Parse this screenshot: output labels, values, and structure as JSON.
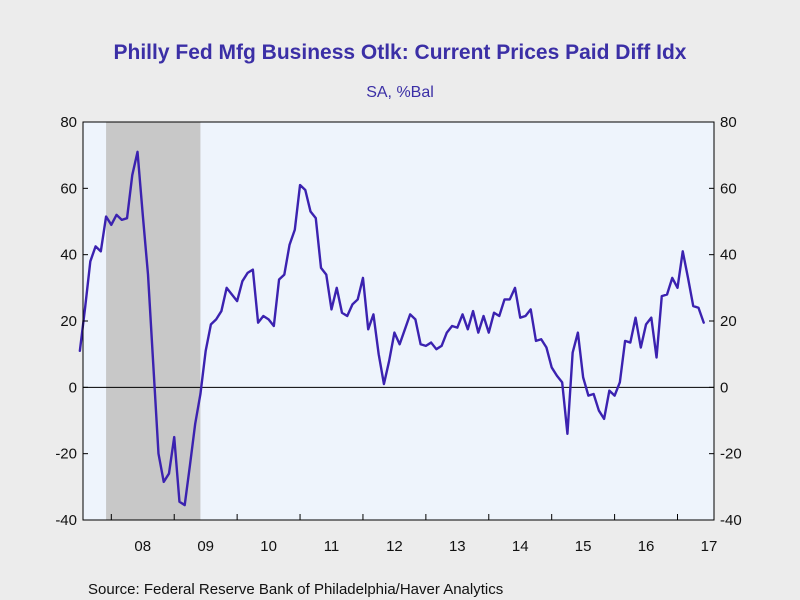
{
  "colors": {
    "background": "#ececec",
    "plot_background": "#eef4fc",
    "recession_shade": "#c8c8c8",
    "series_line": "#3b22b0",
    "title_text": "#3b2fa6",
    "axis": "#000000"
  },
  "source": "Source:  Federal Reserve Bank of Philadelphia/Haver Analytics",
  "chart_data": {
    "type": "line",
    "title": "Philly Fed Mfg Business Otlk: Current Prices Paid Diff Idx",
    "subtitle": "SA, %Bal",
    "xlabel": "",
    "ylabel": "",
    "ylim": [
      -40,
      80
    ],
    "yticks": [
      "80",
      "60",
      "40",
      "20",
      "0",
      "-20",
      "-40"
    ],
    "ytick_values": [
      80,
      60,
      40,
      20,
      0,
      -20,
      -40
    ],
    "xlim": [
      2007.55,
      2017.58
    ],
    "xticks": [
      {
        "label": "08",
        "year": 2008
      },
      {
        "label": "09",
        "year": 2009
      },
      {
        "label": "10",
        "year": 2010
      },
      {
        "label": "11",
        "year": 2011
      },
      {
        "label": "12",
        "year": 2012
      },
      {
        "label": "13",
        "year": 2013
      },
      {
        "label": "14",
        "year": 2014
      },
      {
        "label": "15",
        "year": 2015
      },
      {
        "label": "16",
        "year": 2016
      },
      {
        "label": "17",
        "year": 2017
      }
    ],
    "zero_line": true,
    "grid": false,
    "recession": {
      "start": "2007-12",
      "end": "2009-06"
    },
    "series": [
      {
        "x": [
          "2007-07",
          "2007-08",
          "2007-09",
          "2007-10",
          "2007-11",
          "2007-12",
          "2008-01",
          "2008-02",
          "2008-03",
          "2008-04",
          "2008-05",
          "2008-06",
          "2008-07",
          "2008-08",
          "2008-09",
          "2008-10",
          "2008-11",
          "2008-12",
          "2009-01",
          "2009-02",
          "2009-03",
          "2009-04",
          "2009-05",
          "2009-06",
          "2009-07",
          "2009-08",
          "2009-09",
          "2009-10",
          "2009-11",
          "2009-12",
          "2010-01",
          "2010-02",
          "2010-03",
          "2010-04",
          "2010-05",
          "2010-06",
          "2010-07",
          "2010-08",
          "2010-09",
          "2010-10",
          "2010-11",
          "2010-12",
          "2011-01",
          "2011-02",
          "2011-03",
          "2011-04",
          "2011-05",
          "2011-06",
          "2011-07",
          "2011-08",
          "2011-09",
          "2011-10",
          "2011-11",
          "2011-12",
          "2012-01",
          "2012-02",
          "2012-03",
          "2012-04",
          "2012-05",
          "2012-06",
          "2012-07",
          "2012-08",
          "2012-09",
          "2012-10",
          "2012-11",
          "2012-12",
          "2013-01",
          "2013-02",
          "2013-03",
          "2013-04",
          "2013-05",
          "2013-06",
          "2013-07",
          "2013-08",
          "2013-09",
          "2013-10",
          "2013-11",
          "2013-12",
          "2014-01",
          "2014-02",
          "2014-03",
          "2014-04",
          "2014-05",
          "2014-06",
          "2014-07",
          "2014-08",
          "2014-09",
          "2014-10",
          "2014-11",
          "2014-12",
          "2015-01",
          "2015-02",
          "2015-03",
          "2015-04",
          "2015-05",
          "2015-06",
          "2015-07",
          "2015-08",
          "2015-09",
          "2015-10",
          "2015-11",
          "2015-12",
          "2016-01",
          "2016-02",
          "2016-03",
          "2016-04",
          "2016-05",
          "2016-06",
          "2016-07",
          "2016-08",
          "2016-09",
          "2016-10",
          "2016-11",
          "2016-12",
          "2017-01",
          "2017-02",
          "2017-03",
          "2017-04",
          "2017-05",
          "2017-06"
        ],
        "values": [
          11,
          24,
          38,
          42.5,
          41,
          51.5,
          49,
          52,
          50.5,
          51,
          64,
          71,
          52,
          34,
          7,
          -20,
          -28.5,
          -26,
          -15,
          -34.5,
          -35.5,
          -23.5,
          -11,
          -2,
          11,
          19,
          20.5,
          23,
          30,
          28,
          26,
          32,
          34.5,
          35.5,
          19.5,
          21.5,
          20.5,
          18.5,
          32.5,
          34,
          43,
          47.5,
          61,
          59.5,
          53,
          51,
          36,
          34,
          23.5,
          30,
          22.5,
          21.5,
          25,
          26.5,
          33,
          17.5,
          22,
          10,
          1,
          8,
          16.5,
          13,
          17.5,
          22,
          20.5,
          13,
          12.5,
          13.5,
          11.5,
          12.5,
          16.5,
          18.5,
          18,
          22,
          17.5,
          23,
          16.5,
          21.5,
          16.5,
          22.5,
          21.5,
          26.5,
          26.5,
          30,
          21,
          21.5,
          23.5,
          14,
          14.5,
          12,
          6,
          3.5,
          1.5,
          -14,
          10.5,
          16.5,
          3,
          -2.5,
          -2,
          -7,
          -9.5,
          -1,
          -2.5,
          1.5,
          14,
          13.5,
          21,
          12,
          19,
          21,
          9,
          27.5,
          28,
          33,
          30,
          41,
          33,
          24.5,
          24,
          19.5
        ]
      }
    ]
  }
}
